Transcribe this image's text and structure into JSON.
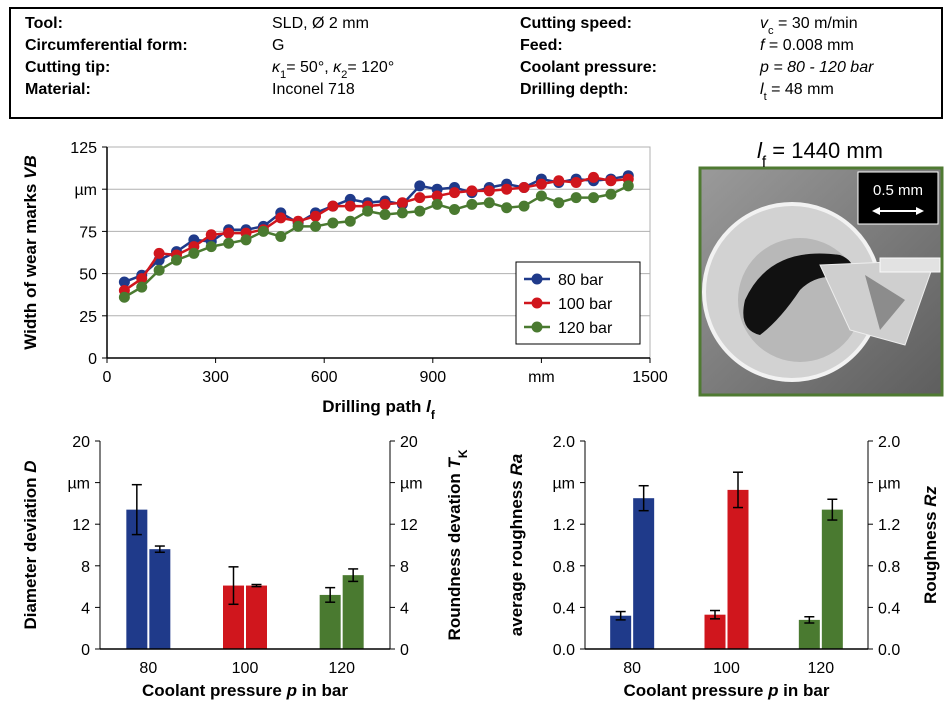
{
  "header_table": {
    "rows": [
      {
        "label1": "Tool:",
        "value1": [
          "SLD, Ø 2 mm"
        ],
        "label2": "Cutting speed:",
        "value2": [
          "v",
          "c",
          " = 30 m/min"
        ]
      },
      {
        "label1": "Circumferential form:",
        "value1": [
          "G"
        ],
        "label2": "Feed:",
        "value2": [
          "f",
          " = 0.008 mm"
        ]
      },
      {
        "label1": "Cutting tip:",
        "value1": [
          "κ",
          "1",
          "= 50°, ",
          "κ",
          "2",
          "= 120°"
        ],
        "label2": "Coolant pressure:",
        "value2": [
          "p = 80 - 120 bar"
        ]
      },
      {
        "label1": "Material:",
        "value1": [
          "Inconel 718"
        ],
        "label2": "Drilling depth:",
        "value2": [
          "l",
          "t",
          " = 48 mm"
        ]
      }
    ]
  },
  "photo": {
    "caption": [
      "l",
      "f",
      " = 1440 mm"
    ],
    "scale_label": "0.5 mm"
  },
  "chart_data": [
    {
      "type": "line",
      "ylabel": [
        "Width of wear marks ",
        "VB"
      ],
      "xlabel": [
        "Drilling path ",
        "l",
        "f"
      ],
      "x": [
        48,
        96,
        144,
        192,
        240,
        288,
        336,
        384,
        432,
        480,
        528,
        576,
        624,
        672,
        720,
        768,
        816,
        864,
        912,
        960,
        1008,
        1056,
        1104,
        1152,
        1200,
        1248,
        1296,
        1344,
        1392,
        1440
      ],
      "series": [
        {
          "name": "80 bar",
          "color": "#1f3a8a",
          "values": [
            45,
            49,
            58,
            63,
            70,
            69,
            76,
            76,
            78,
            86,
            80,
            86,
            90,
            94,
            92,
            93,
            91,
            102,
            100,
            101,
            98,
            101,
            103,
            101,
            106,
            104,
            106,
            105,
            106,
            108
          ]
        },
        {
          "name": "100 bar",
          "color": "#d0161d",
          "values": [
            40,
            47,
            62,
            61,
            66,
            73,
            74,
            74,
            76,
            83,
            81,
            84,
            90,
            90,
            90,
            91,
            92,
            95,
            96,
            98,
            99,
            99,
            100,
            101,
            103,
            105,
            104,
            107,
            105,
            106
          ]
        },
        {
          "name": "120 bar",
          "color": "#4a7a30",
          "values": [
            36,
            42,
            52,
            58,
            62,
            66,
            68,
            70,
            75,
            72,
            78,
            78,
            80,
            81,
            87,
            85,
            86,
            87,
            91,
            88,
            91,
            92,
            89,
            90,
            96,
            92,
            95,
            95,
            97,
            102
          ]
        }
      ],
      "xlim": [
        0,
        1500
      ],
      "xticks": [
        0,
        300,
        600,
        900,
        {
          "value": 1200,
          "label": "mm"
        },
        1500
      ],
      "ylim": [
        0,
        125
      ],
      "yticks": [
        0,
        25,
        50,
        75,
        {
          "value": 100,
          "label": "µm"
        },
        125
      ],
      "grid": true,
      "legend": "lower right"
    },
    {
      "type": "bar",
      "ylabel": [
        "Diameter deviation ",
        "D"
      ],
      "y2label": [
        "Roundness devation ",
        "T",
        "K"
      ],
      "xlabel": [
        "Coolant pressure ",
        "p",
        " in bar"
      ],
      "categories": [
        "80",
        "100",
        "120"
      ],
      "colors": [
        "#1f3a8a",
        "#d0161d",
        "#4a7a30"
      ],
      "series": [
        {
          "axis": "y",
          "values": [
            13.4,
            6.1,
            5.2
          ],
          "errors": [
            2.4,
            1.8,
            0.7
          ]
        },
        {
          "axis": "y2",
          "values": [
            9.6,
            6.1,
            7.1
          ],
          "errors": [
            0.3,
            0.1,
            0.6
          ]
        }
      ],
      "ylim": [
        0,
        20
      ],
      "yticks": [
        0,
        4,
        8,
        12,
        {
          "value": 16,
          "label": "µm"
        },
        20
      ],
      "y2lim": [
        0,
        20
      ],
      "y2ticks": [
        0,
        4,
        8,
        12,
        {
          "value": 16,
          "label": "µm"
        },
        20
      ]
    },
    {
      "type": "bar",
      "ylabel": [
        "average roughness ",
        "Ra"
      ],
      "y2label": [
        "Roughness ",
        "Rz"
      ],
      "xlabel": [
        "Coolant pressure ",
        "p",
        " in bar"
      ],
      "categories": [
        "80",
        "100",
        "120"
      ],
      "colors": [
        "#1f3a8a",
        "#d0161d",
        "#4a7a30"
      ],
      "series": [
        {
          "axis": "y",
          "values": [
            0.32,
            0.33,
            0.28
          ],
          "errors": [
            0.04,
            0.04,
            0.03
          ]
        },
        {
          "axis": "y2",
          "values": [
            1.45,
            1.53,
            1.34
          ],
          "errors": [
            0.12,
            0.17,
            0.1
          ]
        }
      ],
      "ylim": [
        0,
        2
      ],
      "yticks": [
        {
          "value": 0,
          "label": "0.0"
        },
        0.4,
        0.8,
        1.2,
        {
          "value": 1.6,
          "label": "µm"
        },
        {
          "value": 2,
          "label": "2.0"
        }
      ],
      "y2lim": [
        0,
        2
      ],
      "y2ticks": [
        {
          "value": 0,
          "label": "0.0"
        },
        0.4,
        0.8,
        1.2,
        {
          "value": 1.6,
          "label": "µm"
        },
        {
          "value": 2,
          "label": "2.0"
        }
      ]
    }
  ]
}
